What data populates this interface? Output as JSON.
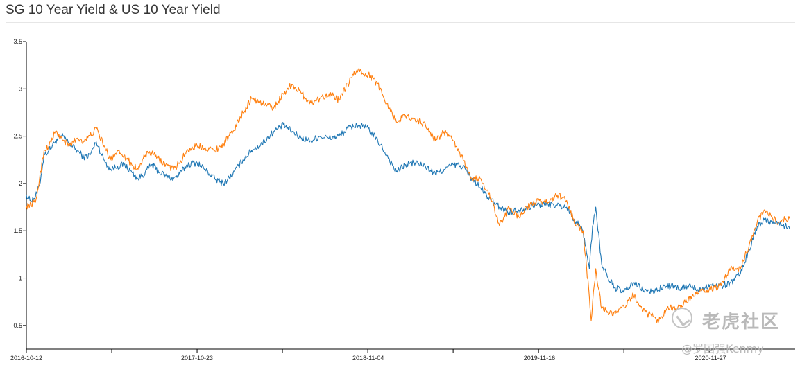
{
  "header": {
    "title": "SG 10 Year Yield & US 10 Year Yield"
  },
  "chart_data": {
    "type": "line",
    "title": "SG 10 Year Yield & US 10 Year Yield",
    "xlabel": "",
    "ylabel": "",
    "ylim": [
      0.25,
      3.5
    ],
    "y_ticks": [
      0.5,
      1,
      1.5,
      2,
      2.5,
      3,
      3.5
    ],
    "y_tick_labels": [
      "0.5",
      "1",
      "1.5",
      "2",
      "2.5",
      "3",
      "3.5"
    ],
    "x_tick_labels": [
      "2016-10-12",
      "2017-10-23",
      "2018-11-04",
      "2019-11-16",
      "2020-11-27"
    ],
    "x_range": [
      "2016-10-12",
      "2021-05-20"
    ],
    "legend": "none",
    "grid": false,
    "series": [
      {
        "color": "#1f77b4",
        "points": [
          [
            "2016-10-12",
            1.88
          ],
          [
            "2016-10-20",
            1.82
          ],
          [
            "2016-11-01",
            1.86
          ],
          [
            "2016-11-10",
            1.98
          ],
          [
            "2016-11-20",
            2.3
          ],
          [
            "2016-12-01",
            2.35
          ],
          [
            "2016-12-15",
            2.45
          ],
          [
            "2017-01-01",
            2.5
          ],
          [
            "2017-01-15",
            2.42
          ],
          [
            "2017-02-01",
            2.35
          ],
          [
            "2017-02-15",
            2.28
          ],
          [
            "2017-03-01",
            2.3
          ],
          [
            "2017-03-15",
            2.44
          ],
          [
            "2017-04-01",
            2.25
          ],
          [
            "2017-04-15",
            2.15
          ],
          [
            "2017-05-01",
            2.18
          ],
          [
            "2017-05-15",
            2.2
          ],
          [
            "2017-06-01",
            2.12
          ],
          [
            "2017-06-15",
            2.05
          ],
          [
            "2017-07-01",
            2.12
          ],
          [
            "2017-07-15",
            2.2
          ],
          [
            "2017-08-01",
            2.12
          ],
          [
            "2017-08-15",
            2.08
          ],
          [
            "2017-09-01",
            2.05
          ],
          [
            "2017-09-15",
            2.1
          ],
          [
            "2017-10-01",
            2.2
          ],
          [
            "2017-10-23",
            2.22
          ],
          [
            "2017-11-10",
            2.15
          ],
          [
            "2017-12-01",
            2.05
          ],
          [
            "2017-12-20",
            2.0
          ],
          [
            "2018-01-10",
            2.1
          ],
          [
            "2018-02-01",
            2.25
          ],
          [
            "2018-02-20",
            2.35
          ],
          [
            "2018-03-15",
            2.42
          ],
          [
            "2018-04-10",
            2.55
          ],
          [
            "2018-05-01",
            2.62
          ],
          [
            "2018-05-20",
            2.55
          ],
          [
            "2018-06-10",
            2.48
          ],
          [
            "2018-07-01",
            2.45
          ],
          [
            "2018-07-20",
            2.5
          ],
          [
            "2018-08-10",
            2.48
          ],
          [
            "2018-09-01",
            2.5
          ],
          [
            "2018-09-20",
            2.58
          ],
          [
            "2018-10-10",
            2.62
          ],
          [
            "2018-11-04",
            2.58
          ],
          [
            "2018-11-25",
            2.45
          ],
          [
            "2018-12-15",
            2.3
          ],
          [
            "2019-01-05",
            2.12
          ],
          [
            "2019-01-25",
            2.2
          ],
          [
            "2019-02-15",
            2.22
          ],
          [
            "2019-03-10",
            2.18
          ],
          [
            "2019-04-01",
            2.1
          ],
          [
            "2019-04-20",
            2.15
          ],
          [
            "2019-05-10",
            2.2
          ],
          [
            "2019-06-01",
            2.18
          ],
          [
            "2019-06-20",
            2.05
          ],
          [
            "2019-07-10",
            1.95
          ],
          [
            "2019-08-01",
            1.82
          ],
          [
            "2019-08-20",
            1.75
          ],
          [
            "2019-09-10",
            1.7
          ],
          [
            "2019-10-01",
            1.72
          ],
          [
            "2019-10-20",
            1.75
          ],
          [
            "2019-11-16",
            1.78
          ],
          [
            "2019-12-05",
            1.78
          ],
          [
            "2019-12-25",
            1.77
          ],
          [
            "2020-01-15",
            1.75
          ],
          [
            "2020-02-01",
            1.62
          ],
          [
            "2020-02-20",
            1.5
          ],
          [
            "2020-03-05",
            1.1
          ],
          [
            "2020-03-12",
            1.55
          ],
          [
            "2020-03-19",
            1.75
          ],
          [
            "2020-04-01",
            1.15
          ],
          [
            "2020-04-15",
            1.0
          ],
          [
            "2020-05-01",
            0.9
          ],
          [
            "2020-05-20",
            0.85
          ],
          [
            "2020-06-10",
            0.95
          ],
          [
            "2020-07-01",
            0.88
          ],
          [
            "2020-07-20",
            0.85
          ],
          [
            "2020-08-10",
            0.9
          ],
          [
            "2020-09-01",
            0.92
          ],
          [
            "2020-09-20",
            0.88
          ],
          [
            "2020-10-10",
            0.92
          ],
          [
            "2020-10-30",
            0.88
          ],
          [
            "2020-11-27",
            0.93
          ],
          [
            "2020-12-20",
            0.92
          ],
          [
            "2021-01-10",
            0.95
          ],
          [
            "2021-02-01",
            1.05
          ],
          [
            "2021-02-20",
            1.3
          ],
          [
            "2021-03-10",
            1.55
          ],
          [
            "2021-03-25",
            1.62
          ],
          [
            "2021-04-10",
            1.6
          ],
          [
            "2021-04-25",
            1.58
          ],
          [
            "2021-05-10",
            1.55
          ],
          [
            "2021-05-20",
            1.52
          ]
        ]
      },
      {
        "color": "#ff7f0e",
        "points": [
          [
            "2016-10-12",
            1.76
          ],
          [
            "2016-10-20",
            1.78
          ],
          [
            "2016-11-01",
            1.8
          ],
          [
            "2016-11-10",
            2.05
          ],
          [
            "2016-11-20",
            2.35
          ],
          [
            "2016-12-01",
            2.4
          ],
          [
            "2016-12-15",
            2.55
          ],
          [
            "2017-01-01",
            2.45
          ],
          [
            "2017-01-15",
            2.4
          ],
          [
            "2017-02-01",
            2.48
          ],
          [
            "2017-02-15",
            2.45
          ],
          [
            "2017-03-01",
            2.5
          ],
          [
            "2017-03-15",
            2.58
          ],
          [
            "2017-04-01",
            2.4
          ],
          [
            "2017-04-15",
            2.25
          ],
          [
            "2017-05-01",
            2.35
          ],
          [
            "2017-05-15",
            2.3
          ],
          [
            "2017-06-01",
            2.2
          ],
          [
            "2017-06-15",
            2.15
          ],
          [
            "2017-07-01",
            2.3
          ],
          [
            "2017-07-15",
            2.32
          ],
          [
            "2017-08-01",
            2.25
          ],
          [
            "2017-08-15",
            2.2
          ],
          [
            "2017-09-01",
            2.15
          ],
          [
            "2017-09-15",
            2.22
          ],
          [
            "2017-10-01",
            2.35
          ],
          [
            "2017-10-23",
            2.4
          ],
          [
            "2017-11-10",
            2.38
          ],
          [
            "2017-12-01",
            2.35
          ],
          [
            "2017-12-20",
            2.42
          ],
          [
            "2018-01-10",
            2.55
          ],
          [
            "2018-02-01",
            2.75
          ],
          [
            "2018-02-20",
            2.9
          ],
          [
            "2018-03-15",
            2.85
          ],
          [
            "2018-04-10",
            2.8
          ],
          [
            "2018-05-01",
            2.95
          ],
          [
            "2018-05-20",
            3.05
          ],
          [
            "2018-06-10",
            2.95
          ],
          [
            "2018-07-01",
            2.85
          ],
          [
            "2018-07-20",
            2.9
          ],
          [
            "2018-08-10",
            2.95
          ],
          [
            "2018-09-01",
            2.88
          ],
          [
            "2018-09-20",
            3.05
          ],
          [
            "2018-10-10",
            3.2
          ],
          [
            "2018-11-04",
            3.15
          ],
          [
            "2018-11-25",
            3.05
          ],
          [
            "2018-12-15",
            2.85
          ],
          [
            "2019-01-05",
            2.65
          ],
          [
            "2019-01-25",
            2.72
          ],
          [
            "2019-02-15",
            2.68
          ],
          [
            "2019-03-10",
            2.62
          ],
          [
            "2019-04-01",
            2.45
          ],
          [
            "2019-04-20",
            2.55
          ],
          [
            "2019-05-10",
            2.45
          ],
          [
            "2019-06-01",
            2.25
          ],
          [
            "2019-06-20",
            2.05
          ],
          [
            "2019-07-10",
            2.05
          ],
          [
            "2019-08-01",
            1.85
          ],
          [
            "2019-08-20",
            1.55
          ],
          [
            "2019-09-10",
            1.75
          ],
          [
            "2019-10-01",
            1.65
          ],
          [
            "2019-10-20",
            1.75
          ],
          [
            "2019-11-16",
            1.82
          ],
          [
            "2019-12-05",
            1.8
          ],
          [
            "2019-12-25",
            1.88
          ],
          [
            "2020-01-15",
            1.82
          ],
          [
            "2020-02-01",
            1.58
          ],
          [
            "2020-02-20",
            1.5
          ],
          [
            "2020-03-05",
            0.8
          ],
          [
            "2020-03-09",
            0.55
          ],
          [
            "2020-03-19",
            1.1
          ],
          [
            "2020-04-01",
            0.68
          ],
          [
            "2020-04-15",
            0.65
          ],
          [
            "2020-05-01",
            0.62
          ],
          [
            "2020-05-20",
            0.7
          ],
          [
            "2020-06-10",
            0.82
          ],
          [
            "2020-07-01",
            0.65
          ],
          [
            "2020-07-20",
            0.6
          ],
          [
            "2020-08-05",
            0.55
          ],
          [
            "2020-08-25",
            0.7
          ],
          [
            "2020-09-15",
            0.68
          ],
          [
            "2020-10-05",
            0.75
          ],
          [
            "2020-10-25",
            0.85
          ],
          [
            "2020-11-27",
            0.88
          ],
          [
            "2020-12-20",
            0.92
          ],
          [
            "2021-01-10",
            1.1
          ],
          [
            "2021-02-01",
            1.1
          ],
          [
            "2021-02-20",
            1.35
          ],
          [
            "2021-03-10",
            1.6
          ],
          [
            "2021-03-25",
            1.72
          ],
          [
            "2021-04-10",
            1.65
          ],
          [
            "2021-04-25",
            1.58
          ],
          [
            "2021-05-10",
            1.62
          ],
          [
            "2021-05-20",
            1.63
          ]
        ]
      }
    ]
  },
  "watermark": {
    "brand": "老虎社区",
    "user": "@罗国强Kenmy"
  }
}
